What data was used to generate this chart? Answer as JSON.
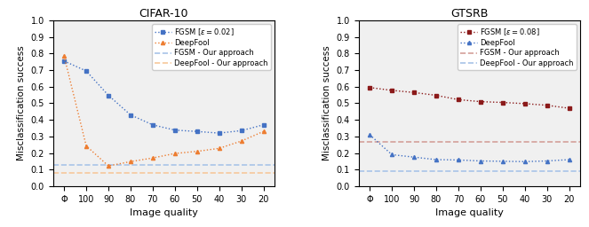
{
  "cifar10": {
    "title": "CIFAR-10",
    "xlabel": "Image quality",
    "ylabel": "Misclassification success",
    "x_labels": [
      "Φ",
      "100",
      "90",
      "80",
      "70",
      "60",
      "50",
      "40",
      "30",
      "20"
    ],
    "fgsm": [
      0.755,
      0.695,
      0.548,
      0.43,
      0.37,
      0.338,
      0.33,
      0.32,
      0.335,
      0.37
    ],
    "deepfool": [
      0.785,
      0.243,
      0.122,
      0.148,
      0.17,
      0.197,
      0.21,
      0.228,
      0.272,
      0.33
    ],
    "fgsm_approach": 0.13,
    "deepfool_approach": 0.082,
    "fgsm_color": "#4472c4",
    "deepfool_color": "#ed7d31",
    "fgsm_approach_color": "#a8c4e8",
    "deepfool_approach_color": "#f7c89b",
    "fgsm_label": "FGSM [$\\varepsilon = 0.02$]",
    "deepfool_label": "DeepFool",
    "fgsm_approach_label": "FGSM - Our approach",
    "deepfool_approach_label": "DeepFool - Our approach",
    "ylim": [
      0.0,
      1.0
    ]
  },
  "gtsrb": {
    "title": "GTSRB",
    "xlabel": "Image quality",
    "ylabel": "Misclassification success",
    "x_labels": [
      "Φ",
      "100",
      "90",
      "80",
      "70",
      "60",
      "50",
      "40",
      "30",
      "20"
    ],
    "fgsm": [
      0.595,
      0.578,
      0.565,
      0.548,
      0.522,
      0.51,
      0.505,
      0.498,
      0.488,
      0.47
    ],
    "deepfool": [
      0.31,
      0.19,
      0.175,
      0.16,
      0.158,
      0.152,
      0.15,
      0.148,
      0.152,
      0.16
    ],
    "fgsm_approach": 0.265,
    "deepfool_approach": 0.088,
    "fgsm_color": "#8b1a1a",
    "deepfool_color": "#4472c4",
    "fgsm_approach_color": "#d4a09a",
    "deepfool_approach_color": "#a8c4e8",
    "fgsm_label": "FGSM [$\\varepsilon = 0.08$]",
    "deepfool_label": "DeepFool",
    "fgsm_approach_label": "FGSM - Our approach",
    "deepfool_approach_label": "DeepFool - Our approach",
    "ylim": [
      0.0,
      1.0
    ]
  }
}
